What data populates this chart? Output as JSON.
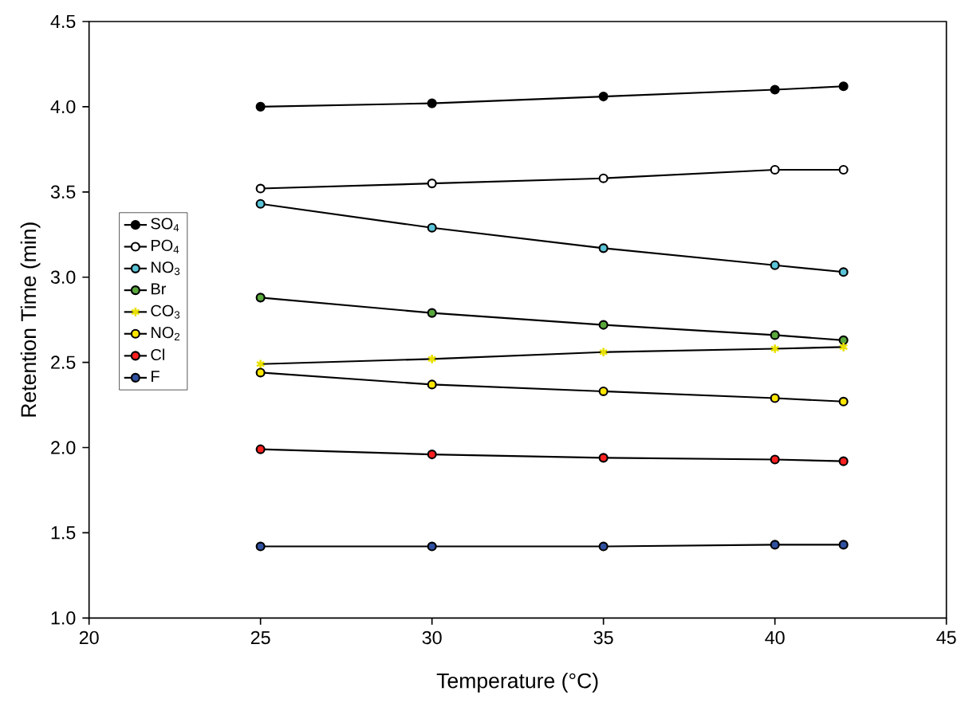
{
  "chart_data": {
    "type": "line",
    "xlabel": "Temperature (°C)",
    "ylabel": "Retention Time (min)",
    "x": [
      25,
      30,
      35,
      40,
      42
    ],
    "xlim": [
      20,
      45
    ],
    "xticks": [
      20,
      25,
      30,
      35,
      40,
      45
    ],
    "ylim": [
      1.0,
      4.5
    ],
    "yticks": [
      {
        "value": 1.0,
        "label": "1.0"
      },
      {
        "value": 1.5,
        "label": "1.5"
      },
      {
        "value": 2.0,
        "label": "2.0"
      },
      {
        "value": 2.5,
        "label": "2.5"
      },
      {
        "value": 3.0,
        "label": "3.0"
      },
      {
        "value": 3.5,
        "label": "3.5"
      },
      {
        "value": 4.0,
        "label": "4.0"
      },
      {
        "value": 4.5,
        "label": "4.5"
      }
    ],
    "grid": false,
    "legend": "left",
    "marker": "circle",
    "line_style": "solid",
    "series": [
      {
        "name": "SO$_{4}$",
        "color": "#000000",
        "values": [
          4.0,
          4.02,
          4.06,
          4.1,
          4.12
        ]
      },
      {
        "name": "PO$_{4}$",
        "color": "#ffffff",
        "values": [
          3.52,
          3.55,
          3.58,
          3.63,
          3.63
        ]
      },
      {
        "name": "NO$_{3}$",
        "color": "#5bc3d6",
        "values": [
          3.43,
          3.29,
          3.17,
          3.07,
          3.03
        ]
      },
      {
        "name": "Br",
        "color": "#5aa83c",
        "values": [
          2.88,
          2.79,
          2.72,
          2.66,
          2.63
        ]
      },
      {
        "name": "CO$_{3}$",
        "color": "#e8e000",
        "marker": "cross",
        "values": [
          2.49,
          2.52,
          2.56,
          2.58,
          2.59
        ]
      },
      {
        "name": "NO$_{2}$",
        "color": "#ffe600",
        "values": [
          2.44,
          2.37,
          2.33,
          2.29,
          2.27
        ]
      },
      {
        "name": "Cl",
        "color": "#ff2020",
        "values": [
          1.99,
          1.96,
          1.94,
          1.93,
          1.92
        ]
      },
      {
        "name": "F",
        "color": "#3050a0",
        "values": [
          1.42,
          1.42,
          1.42,
          1.43,
          1.43
        ]
      }
    ]
  }
}
